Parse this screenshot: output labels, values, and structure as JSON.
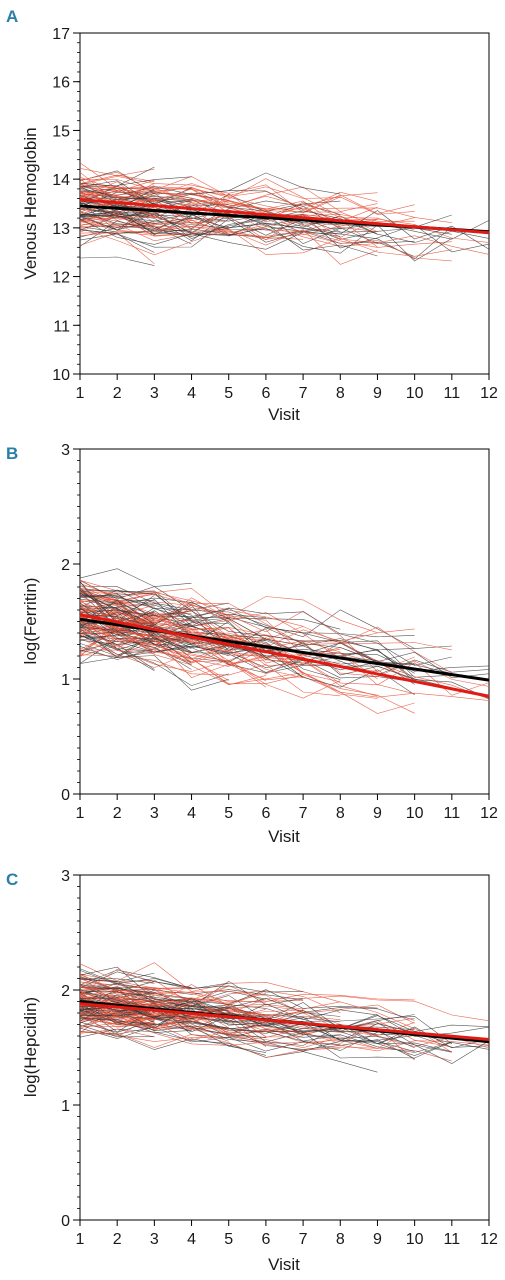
{
  "colors": {
    "individual_a": "#3a3a3a",
    "individual_b": "#e8553d",
    "fit_a": "#000000",
    "fit_b": "#e01b14",
    "panel_letter": "#2a7fa8"
  },
  "chart_data": [
    {
      "panel": "A",
      "type": "line",
      "xlabel": "Visit",
      "ylabel": "Venous Hemoglobin",
      "xlim": [
        1,
        12
      ],
      "ylim": [
        10,
        17
      ],
      "x_ticks": [
        1,
        2,
        3,
        4,
        5,
        6,
        7,
        8,
        9,
        10,
        11,
        12
      ],
      "y_ticks": [
        10,
        11,
        12,
        13,
        14,
        15,
        16,
        17
      ],
      "y_minor_step": 0.2,
      "grid": false,
      "n_individual_trajectories": 110,
      "trajectory_spread": 0.55,
      "series": [
        {
          "style": "fit_a",
          "x": [
            1,
            12
          ],
          "y": [
            13.45,
            12.92
          ]
        },
        {
          "style": "fit_b",
          "x": [
            1,
            12
          ],
          "y": [
            13.58,
            12.9
          ]
        }
      ]
    },
    {
      "panel": "B",
      "type": "line",
      "xlabel": "Visit",
      "ylabel": "log(Ferritin)",
      "xlim": [
        1,
        12
      ],
      "ylim": [
        0,
        3
      ],
      "x_ticks": [
        1,
        2,
        3,
        4,
        5,
        6,
        7,
        8,
        9,
        10,
        11,
        12
      ],
      "y_ticks": [
        0,
        1,
        2,
        3
      ],
      "y_minor_step": 0.1,
      "grid": false,
      "n_individual_trajectories": 140,
      "trajectory_spread": 0.28,
      "series": [
        {
          "style": "fit_a",
          "x": [
            1,
            12
          ],
          "y": [
            1.52,
            0.99
          ]
        },
        {
          "style": "fit_b",
          "x": [
            1,
            12
          ],
          "y": [
            1.56,
            0.85
          ]
        }
      ]
    },
    {
      "panel": "C",
      "type": "line",
      "xlabel": "Visit",
      "ylabel": "log(Hepcidin)",
      "xlim": [
        1,
        12
      ],
      "ylim": [
        0,
        3
      ],
      "x_ticks": [
        1,
        2,
        3,
        4,
        5,
        6,
        7,
        8,
        9,
        10,
        11,
        12
      ],
      "y_ticks": [
        0,
        1,
        2,
        3
      ],
      "y_minor_step": 0.1,
      "grid": false,
      "n_individual_trajectories": 140,
      "trajectory_spread": 0.22,
      "series": [
        {
          "style": "fit_a",
          "x": [
            1,
            12
          ],
          "y": [
            1.9,
            1.55
          ]
        },
        {
          "style": "fit_b",
          "x": [
            1,
            12
          ],
          "y": [
            1.88,
            1.57
          ]
        }
      ]
    }
  ]
}
